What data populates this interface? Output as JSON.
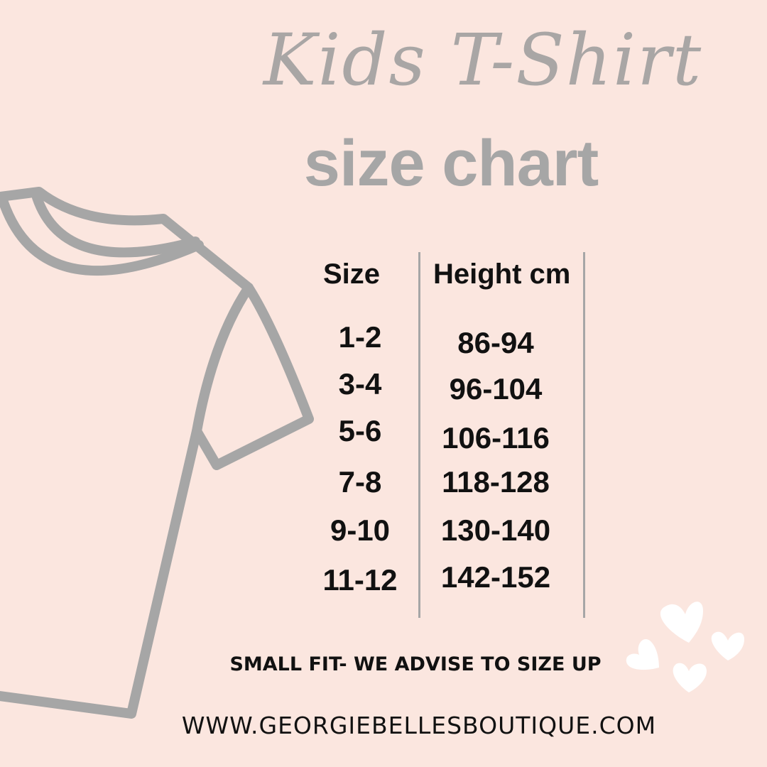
{
  "title": {
    "script": "Kids T-Shirt",
    "bold": "size chart"
  },
  "table": {
    "headers": [
      "Size",
      "Height cm"
    ],
    "rows": [
      [
        "1-2",
        "86-94"
      ],
      [
        "3-4",
        "96-104"
      ],
      [
        "5-6",
        "106-116"
      ],
      [
        "7-8",
        "118-128"
      ],
      [
        "9-10",
        "130-140"
      ],
      [
        "11-12",
        "142-152"
      ]
    ]
  },
  "note": "SMALL FIT- WE ADVISE TO SIZE UP",
  "website": "WWW.GEORGIEBELLESBOUTIQUE.COM",
  "colors": {
    "background": "#fbe6df",
    "accent_gray": "#a6a6a6",
    "text": "#111111",
    "hearts": "#ffffff"
  },
  "icons": [
    "t-shirt-outline",
    "hearts"
  ]
}
